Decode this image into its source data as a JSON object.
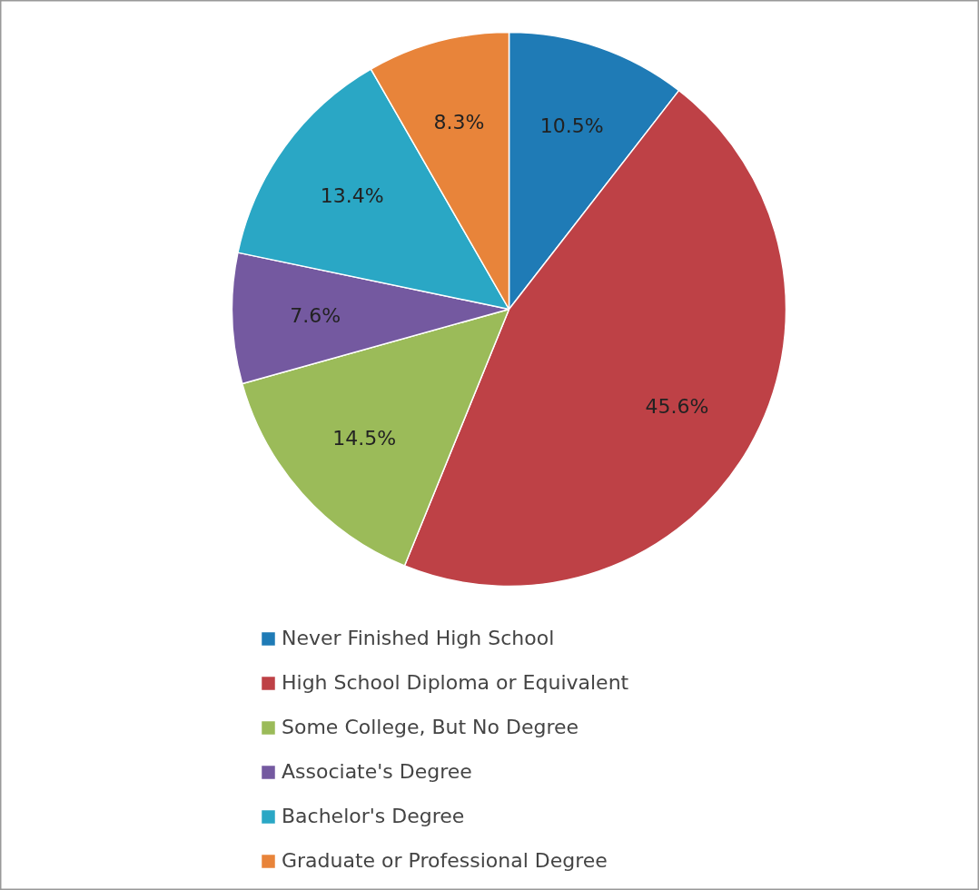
{
  "chart_data": {
    "type": "pie",
    "categories": [
      "Never Finished High School",
      "High School Diploma or Equivalent",
      "Some College, But No Degree",
      "Associate's Degree",
      "Bachelor's Degree",
      "Graduate or Professional Degree"
    ],
    "values": [
      10.5,
      45.6,
      14.5,
      7.6,
      13.4,
      8.3
    ],
    "colors": [
      "#1f7bb6",
      "#be4146",
      "#9bbb59",
      "#7459a0",
      "#2aa7c5",
      "#e8843a"
    ],
    "value_labels": [
      "10.5%",
      "45.6%",
      "14.5%",
      "7.6%",
      "13.4%",
      "8.3%"
    ],
    "legend": "bottom"
  }
}
